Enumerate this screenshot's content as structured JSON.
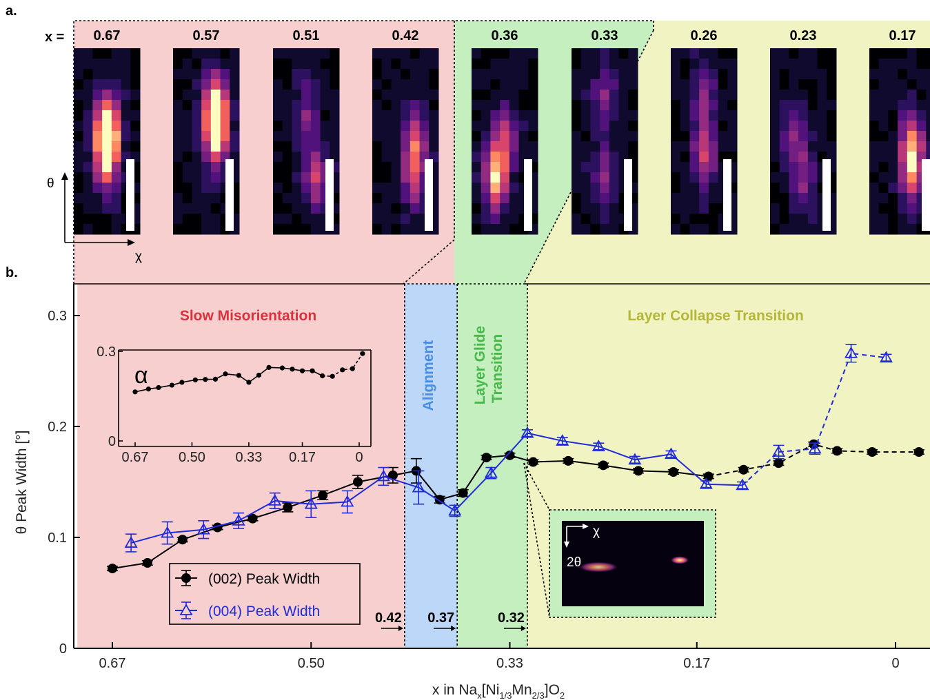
{
  "panel_labels": {
    "a": "a.",
    "b": "b."
  },
  "panel_a": {
    "x_prefix": "x =",
    "x_values": [
      "0.67",
      "0.57",
      "0.51",
      "0.42",
      "0.36",
      "0.33",
      "0.26",
      "0.23",
      "0.17"
    ],
    "theta_axis": "θ",
    "chi_axis": "χ",
    "region_colors": [
      "#f8cfcf",
      "#f8cfcf",
      "#f8cfcf",
      "#f8cfcf",
      "#c6efc0",
      "#c6efc0",
      "#f2f3c2",
      "#f2f3c2",
      "#f2f3c2"
    ]
  },
  "chart_data": {
    "type": "line",
    "xlabel": "x in Nax[Ni1/3Mn2/3]O2",
    "ylabel": "θ Peak Width [°]",
    "x_ticks": [
      "0.67",
      "0.50",
      "0.33",
      "0.17",
      "0"
    ],
    "y_ticks": [
      "0",
      "0.1",
      "0.2",
      "0.3"
    ],
    "ylim": [
      0,
      0.33
    ],
    "xlim_reversed": [
      0.7,
      -0.03
    ],
    "regions": [
      {
        "label": "Slow Misorientation",
        "from": 0.7,
        "to": 0.42,
        "color": "#f8cfcf",
        "text_color": "#d8333c"
      },
      {
        "label": "Alignment",
        "from": 0.42,
        "to": 0.375,
        "color": "#bcd7f7",
        "text_color": "#4a8ee0"
      },
      {
        "label": "Layer Glide Transition",
        "label_line1": "Layer Glide",
        "label_line2": "Transition",
        "from": 0.375,
        "to": 0.315,
        "color": "#c6efc0",
        "text_color": "#48b84a"
      },
      {
        "label": "Layer Collapse Transition",
        "from": 0.315,
        "to": -0.03,
        "color": "#f2f3c2",
        "text_color": "#b4b638"
      }
    ],
    "boundary_labels": [
      {
        "text": "0.42",
        "x": 0.42
      },
      {
        "text": "0.37",
        "x": 0.375
      },
      {
        "text": "0.32",
        "x": 0.315
      }
    ],
    "series": [
      {
        "name": "(002) Peak Width",
        "color": "#000000",
        "marker": "circle",
        "x": [
          0.67,
          0.64,
          0.61,
          0.58,
          0.55,
          0.52,
          0.49,
          0.46,
          0.43,
          0.41,
          0.39,
          0.37,
          0.35,
          0.33,
          0.31,
          0.28,
          0.25,
          0.22,
          0.19,
          0.16,
          0.13,
          0.1,
          0.07,
          0.05,
          0.02,
          -0.02
        ],
        "y": [
          0.072,
          0.077,
          0.098,
          0.109,
          0.117,
          0.127,
          0.138,
          0.15,
          0.156,
          0.16,
          0.134,
          0.14,
          0.172,
          0.174,
          0.168,
          0.169,
          0.165,
          0.16,
          0.159,
          0.155,
          0.161,
          0.167,
          0.184,
          0.178,
          0.177,
          0.177
        ],
        "err": [
          0.002,
          0.002,
          0.002,
          0.002,
          0.002,
          0.004,
          0.004,
          0.006,
          0.007,
          0.011,
          0.003,
          0.003,
          0.002,
          0.002,
          0.002,
          0.002,
          0.002,
          0.002,
          0.002,
          0.002,
          0.002,
          0.002,
          0.002,
          0.002,
          0.002,
          0.002
        ],
        "dashed_from_index": 19
      },
      {
        "name": "(004) Peak Width",
        "color": "#1f2bd8",
        "marker": "triangle",
        "x": [
          0.654,
          0.623,
          0.592,
          0.562,
          0.531,
          0.5,
          0.469,
          0.438,
          0.408,
          0.377,
          0.346,
          0.315,
          0.285,
          0.254,
          0.223,
          0.192,
          0.162,
          0.131,
          0.1,
          0.069,
          0.038,
          0.008
        ],
        "y": [
          0.095,
          0.104,
          0.107,
          0.115,
          0.133,
          0.13,
          0.132,
          0.155,
          0.145,
          0.124,
          0.158,
          0.194,
          0.187,
          0.182,
          0.17,
          0.175,
          0.148,
          0.147,
          0.177,
          0.18,
          0.266,
          0.262
        ],
        "err": [
          0.008,
          0.01,
          0.008,
          0.007,
          0.007,
          0.012,
          0.01,
          0.008,
          0.015,
          0.005,
          0.005,
          0.003,
          0.003,
          0.003,
          0.003,
          0.003,
          0.003,
          0.003,
          0.006,
          0.005,
          0.008,
          0.003
        ],
        "dashed_from_index": 17
      }
    ],
    "inset": {
      "label": "α",
      "x_ticks": [
        "0.67",
        "0.50",
        "0.33",
        "0.17",
        "0"
      ],
      "y_ticks": [
        "0",
        "0.3"
      ],
      "x": [
        0.67,
        0.63,
        0.6,
        0.56,
        0.53,
        0.49,
        0.46,
        0.43,
        0.4,
        0.36,
        0.33,
        0.3,
        0.27,
        0.23,
        0.2,
        0.17,
        0.14,
        0.11,
        0.08,
        0.05,
        0.02,
        -0.01
      ],
      "y": [
        0.205,
        0.217,
        0.223,
        0.233,
        0.245,
        0.255,
        0.257,
        0.258,
        0.28,
        0.274,
        0.245,
        0.275,
        0.307,
        0.305,
        0.3,
        0.293,
        0.293,
        0.272,
        0.27,
        0.297,
        0.302,
        0.365
      ],
      "dashed_from_index": 17
    },
    "image_inset": {
      "x_axis": "χ",
      "y_axis": "2θ"
    }
  }
}
